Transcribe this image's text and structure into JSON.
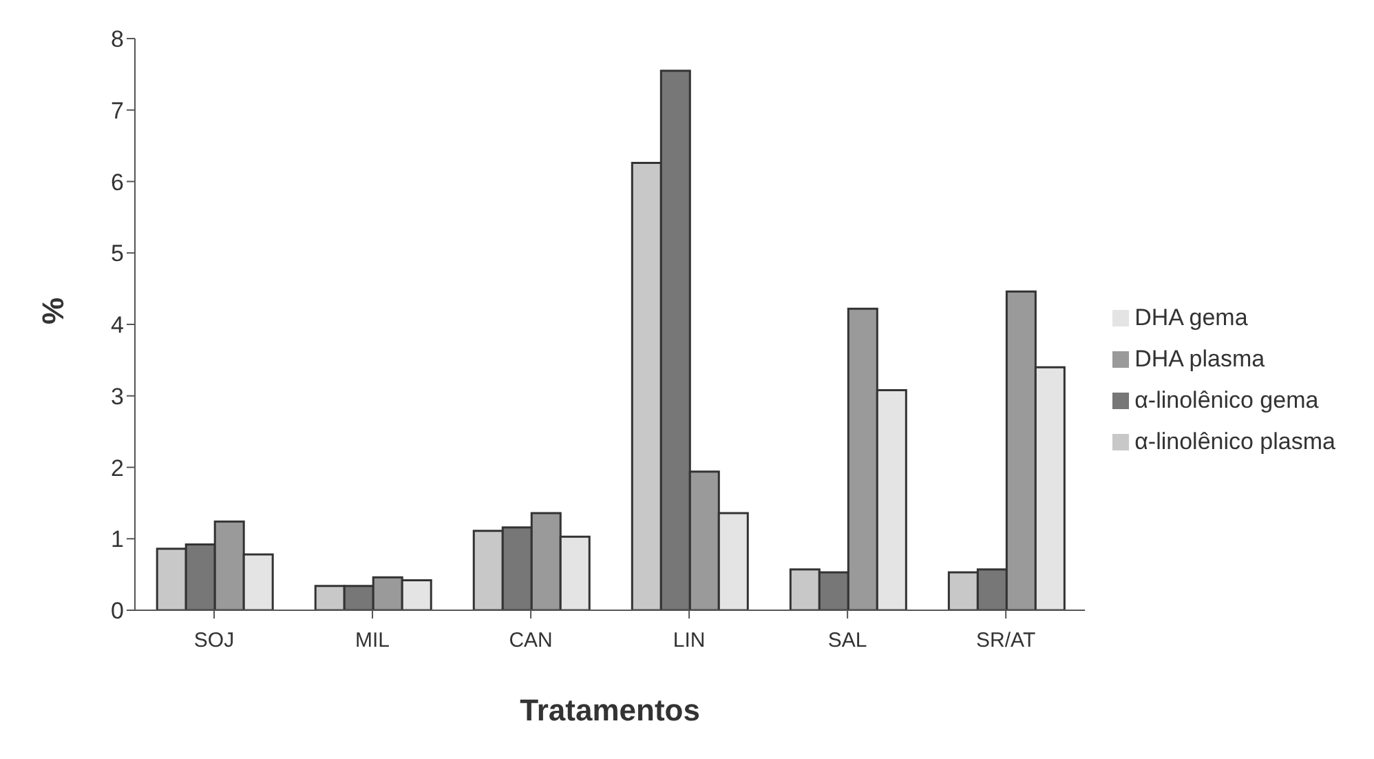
{
  "chart_data": {
    "type": "bar",
    "xlabel": "Tratamentos",
    "ylabel": "%",
    "categories": [
      "SOJ",
      "MIL",
      "CAN",
      "LIN",
      "SAL",
      "SR/AT"
    ],
    "series": [
      {
        "name": "α-linolênico plasma",
        "color": "#c8c8c8",
        "values": [
          0.86,
          0.34,
          1.11,
          6.26,
          0.57,
          0.53
        ]
      },
      {
        "name": "α-linolênico gema",
        "color": "#777777",
        "values": [
          0.92,
          0.34,
          1.16,
          7.55,
          0.53,
          0.57
        ]
      },
      {
        "name": "DHA plasma",
        "color": "#9a9a9a",
        "values": [
          1.24,
          0.46,
          1.36,
          1.94,
          4.22,
          4.46
        ]
      },
      {
        "name": "DHA gema",
        "color": "#e4e4e4",
        "values": [
          0.78,
          0.42,
          1.03,
          1.36,
          3.08,
          3.4
        ]
      }
    ],
    "ylim": [
      0,
      8
    ],
    "yticks": [
      0,
      1,
      2,
      3,
      4,
      5,
      6,
      7,
      8
    ],
    "grid": false,
    "legend": "right"
  }
}
